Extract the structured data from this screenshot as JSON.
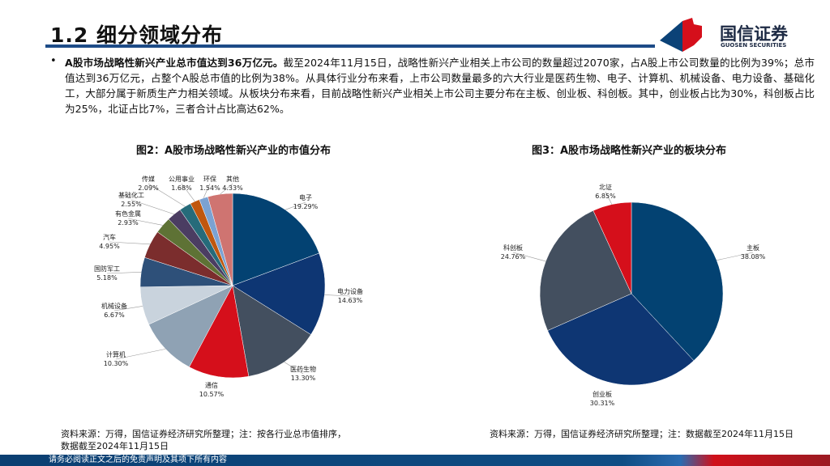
{
  "header": {
    "title": "1.2 细分领域分布",
    "brand": "国信证券",
    "brand_en": "GUOSEN SECURITIES"
  },
  "body": {
    "bullet": "•",
    "lead": "A股市场战略性新兴产业总市值达到36万亿元。",
    "text": "截至2024年11月15日，战略性新兴产业相关上市公司的数量超过2070家，占A股上市公司数量的比例为39%；总市值达到36万亿元，占整个A股总市值的比例为38%。从具体行业分布来看，上市公司数量最多的六大行业是医药生物、电子、计算机、机械设备、电力设备、基础化工，大部分属于新质生产力相关领域。从板块分布来看，目前战略性新兴产业相关上市公司主要分布在主板、创业板、科创板。其中，创业板占比为30%，科创板占比为25%，北证占比7%，三者合计占比高达62%。"
  },
  "chart_data": [
    {
      "type": "pie",
      "title": "图2：A股市场战略性新兴产业的市值分布",
      "categories": [
        "电子",
        "电力设备",
        "医药生物",
        "通信",
        "计算机",
        "机械设备",
        "国防军工",
        "汽车",
        "有色金属",
        "基础化工",
        "传媒",
        "公用事业",
        "环保",
        "其他"
      ],
      "values": [
        19.29,
        14.63,
        13.3,
        10.57,
        10.3,
        6.67,
        5.18,
        4.95,
        2.93,
        2.55,
        2.09,
        1.68,
        1.54,
        4.33
      ],
      "labels": [
        "19.29%",
        "14.63%",
        "13.30%",
        "10.57%",
        "10.30%",
        "6.67%",
        "5.18%",
        "4.95%",
        "2.93%",
        "2.55%",
        "2.09%",
        "1.68%",
        "1.54%",
        "4.33%"
      ],
      "colors": [
        "#034272",
        "#0e3673",
        "#434f5f",
        "#d50f1b",
        "#8fa2b4",
        "#c9d3dd",
        "#2e5079",
        "#7b2d2d",
        "#5e7235",
        "#4b3d62",
        "#266b7a",
        "#c0570e",
        "#7ba2d2",
        "#cf7471"
      ],
      "source": "资料来源：万得，国信证券经济研究所整理；注：按各行业总市值排序，",
      "source2": "数据截至2024年11月15日"
    },
    {
      "type": "pie",
      "title": "图3：A股市场战略性新兴产业的板块分布",
      "categories": [
        "主板",
        "创业板",
        "科创板",
        "北证"
      ],
      "values": [
        38.08,
        30.31,
        24.76,
        6.85
      ],
      "labels": [
        "38.08%",
        "30.31%",
        "24.76%",
        "6.85%"
      ],
      "colors": [
        "#034272",
        "#0e3673",
        "#434f5f",
        "#d50f1b"
      ],
      "source": "资料来源：万得，国信证券经济研究所整理；注：数据截至2024年11月15日"
    }
  ],
  "footer": {
    "disclaimer": "请务必阅读正文之后的免责声明及其项下所有内容"
  }
}
